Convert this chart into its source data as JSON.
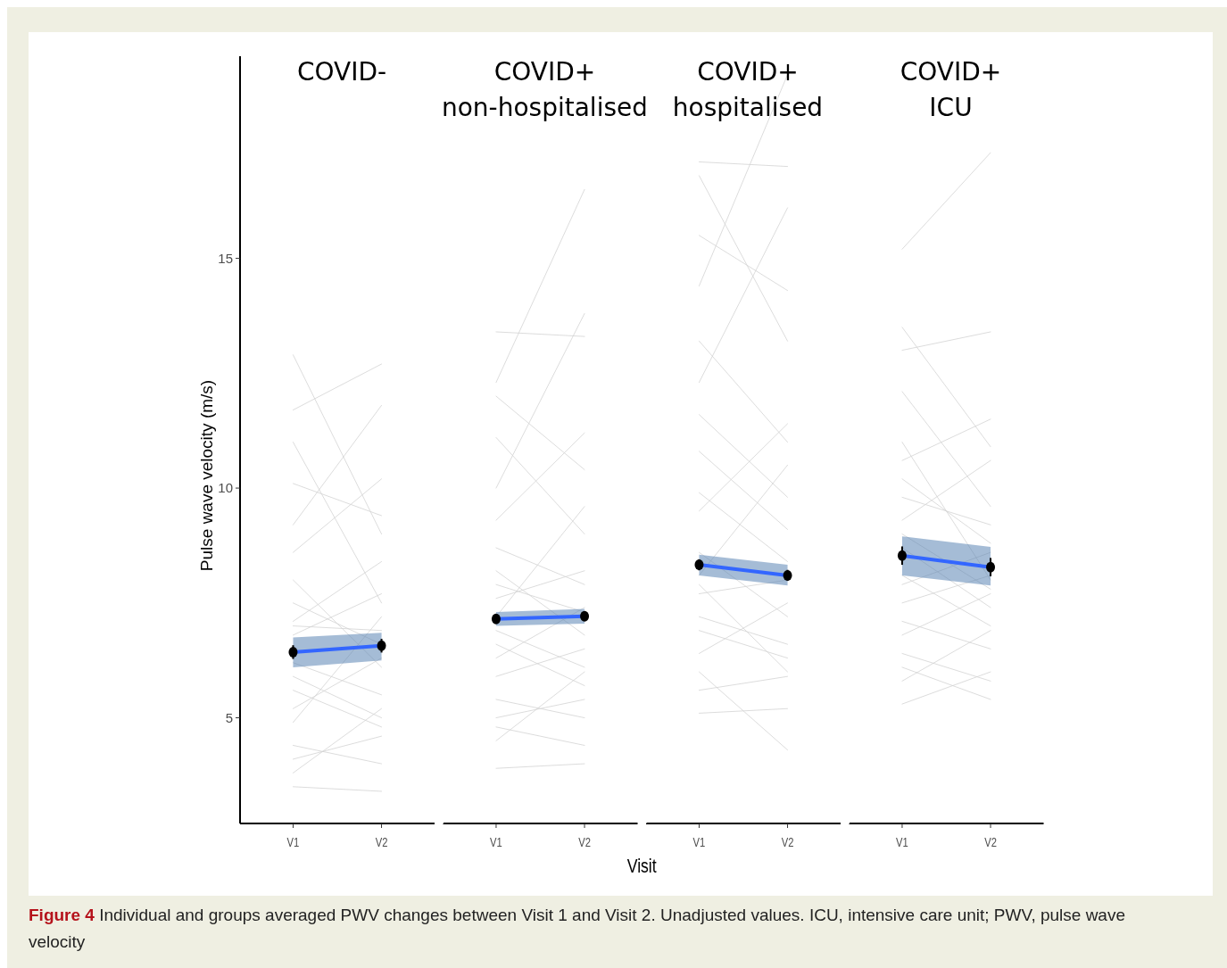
{
  "chart_data": [
    {
      "type": "line",
      "title": "COVID-",
      "ylabel": "Pulse wave velocity (m/s)",
      "categories": [
        "V1",
        "V2"
      ],
      "ylim": [
        2.7,
        19.4
      ],
      "yticks": [
        5,
        10,
        15
      ],
      "grid": false,
      "line_style": "solid",
      "annotations": [
        "Figure 4 Individual and groups averaged PWV changes between Visit 1 and Visit 2. Unadjusted values. ICU, intensive care unit; PWV, pulse wave velocity"
      ],
      "series": [
        {
          "color": "#d3d3d3",
          "values": [
            12.9,
            9.0
          ]
        },
        {
          "color": "#d3d3d3",
          "values": [
            11.7,
            12.7
          ]
        },
        {
          "color": "#d3d3d3",
          "values": [
            3.5,
            3.4
          ]
        },
        {
          "color": "#d3d3d3",
          "values": [
            3.8,
            5.2
          ]
        },
        {
          "color": "#d3d3d3",
          "values": [
            11.0,
            7.5
          ]
        },
        {
          "color": "#d3d3d3",
          "values": [
            9.2,
            11.8
          ]
        },
        {
          "color": "#d3d3d3",
          "values": [
            8.0,
            6.1
          ]
        },
        {
          "color": "#d3d3d3",
          "values": [
            7.1,
            8.4
          ]
        },
        {
          "color": "#d3d3d3",
          "values": [
            7.0,
            6.9
          ]
        },
        {
          "color": "#d3d3d3",
          "values": [
            5.9,
            5.0
          ]
        },
        {
          "color": "#d3d3d3",
          "values": [
            5.2,
            6.3
          ]
        },
        {
          "color": "#d3d3d3",
          "values": [
            4.4,
            4.0
          ]
        },
        {
          "color": "#d3d3d3",
          "values": [
            4.9,
            7.2
          ]
        },
        {
          "color": "#d3d3d3",
          "values": [
            6.2,
            5.5
          ]
        },
        {
          "color": "#d3d3d3",
          "values": [
            7.5,
            6.6
          ]
        },
        {
          "color": "#d3d3d3",
          "values": [
            8.6,
            10.2
          ]
        },
        {
          "color": "#d3d3d3",
          "values": [
            6.8,
            7.7
          ]
        },
        {
          "color": "#d3d3d3",
          "values": [
            5.6,
            4.8
          ]
        },
        {
          "color": "#d3d3d3",
          "values": [
            10.1,
            9.4
          ]
        },
        {
          "color": "#d3d3d3",
          "values": [
            4.1,
            4.6
          ]
        },
        {
          "color": "#3366ff",
          "values": [
            6.43,
            6.57
          ],
          "lower": [
            6.1,
            6.25
          ],
          "upper": [
            6.75,
            6.85
          ]
        },
        {
          "type": "scatter",
          "marker": "circle",
          "color": "#000000",
          "values": [
            6.43,
            6.57
          ],
          "errors": [
            0.15,
            0.15
          ]
        }
      ]
    },
    {
      "type": "line",
      "title": "COVID+\nnon-hospitalised",
      "xlabel": "Visit",
      "categories": [
        "V1",
        "V2"
      ],
      "ylim": [
        2.7,
        19.4
      ],
      "yticks": [
        5,
        10,
        15
      ],
      "tick_labels": "x",
      "grid": false,
      "line_style": "solid",
      "series": [
        {
          "color": "#d3d3d3",
          "values": [
            13.4,
            13.3
          ]
        },
        {
          "color": "#d3d3d3",
          "values": [
            12.3,
            16.5
          ]
        },
        {
          "color": "#d3d3d3",
          "values": [
            3.9,
            4.0
          ]
        },
        {
          "color": "#d3d3d3",
          "values": [
            4.5,
            6.0
          ]
        },
        {
          "color": "#d3d3d3",
          "values": [
            11.1,
            9.0
          ]
        },
        {
          "color": "#d3d3d3",
          "values": [
            10.0,
            13.8
          ]
        },
        {
          "color": "#d3d3d3",
          "values": [
            8.7,
            7.9
          ]
        },
        {
          "color": "#d3d3d3",
          "values": [
            7.6,
            8.2
          ]
        },
        {
          "color": "#d3d3d3",
          "values": [
            6.9,
            6.1
          ]
        },
        {
          "color": "#d3d3d3",
          "values": [
            6.3,
            7.4
          ]
        },
        {
          "color": "#d3d3d3",
          "values": [
            5.4,
            5.0
          ]
        },
        {
          "color": "#d3d3d3",
          "values": [
            4.8,
            4.4
          ]
        },
        {
          "color": "#d3d3d3",
          "values": [
            7.2,
            9.6
          ]
        },
        {
          "color": "#d3d3d3",
          "values": [
            8.2,
            6.8
          ]
        },
        {
          "color": "#d3d3d3",
          "values": [
            9.3,
            11.2
          ]
        },
        {
          "color": "#d3d3d3",
          "values": [
            5.9,
            6.5
          ]
        },
        {
          "color": "#d3d3d3",
          "values": [
            6.6,
            5.7
          ]
        },
        {
          "color": "#d3d3d3",
          "values": [
            7.9,
            7.3
          ]
        },
        {
          "color": "#d3d3d3",
          "values": [
            12.0,
            10.4
          ]
        },
        {
          "color": "#d3d3d3",
          "values": [
            5.0,
            5.4
          ]
        },
        {
          "color": "#3366ff",
          "values": [
            7.15,
            7.21
          ],
          "lower": [
            7.0,
            7.05
          ],
          "upper": [
            7.3,
            7.37
          ]
        },
        {
          "type": "scatter",
          "marker": "circle",
          "color": "#000000",
          "values": [
            7.15,
            7.21
          ],
          "errors": [
            0.1,
            0.1
          ]
        }
      ]
    },
    {
      "type": "line",
      "title": "COVID+\nhospitalised",
      "categories": [
        "V1",
        "V2"
      ],
      "ylim": [
        2.7,
        19.4
      ],
      "yticks": [
        5,
        10,
        15
      ],
      "tick_labels": "x",
      "grid": false,
      "line_style": "solid",
      "series": [
        {
          "color": "#d3d3d3",
          "values": [
            17.1,
            17.0
          ]
        },
        {
          "color": "#d3d3d3",
          "values": [
            16.8,
            13.2
          ]
        },
        {
          "color": "#d3d3d3",
          "values": [
            5.1,
            5.2
          ]
        },
        {
          "color": "#d3d3d3",
          "values": [
            6.0,
            4.3
          ]
        },
        {
          "color": "#d3d3d3",
          "values": [
            14.4,
            19.0
          ]
        },
        {
          "color": "#d3d3d3",
          "values": [
            12.3,
            16.1
          ]
        },
        {
          "color": "#d3d3d3",
          "values": [
            10.8,
            9.1
          ]
        },
        {
          "color": "#d3d3d3",
          "values": [
            9.5,
            11.4
          ]
        },
        {
          "color": "#d3d3d3",
          "values": [
            8.6,
            7.2
          ]
        },
        {
          "color": "#d3d3d3",
          "values": [
            7.7,
            8.0
          ]
        },
        {
          "color": "#d3d3d3",
          "values": [
            6.9,
            6.3
          ]
        },
        {
          "color": "#d3d3d3",
          "values": [
            5.6,
            5.9
          ]
        },
        {
          "color": "#d3d3d3",
          "values": [
            8.1,
            10.5
          ]
        },
        {
          "color": "#d3d3d3",
          "values": [
            9.9,
            8.4
          ]
        },
        {
          "color": "#d3d3d3",
          "values": [
            11.6,
            9.8
          ]
        },
        {
          "color": "#d3d3d3",
          "values": [
            7.2,
            6.6
          ]
        },
        {
          "color": "#d3d3d3",
          "values": [
            13.2,
            11.0
          ]
        },
        {
          "color": "#d3d3d3",
          "values": [
            6.4,
            7.5
          ]
        },
        {
          "color": "#d3d3d3",
          "values": [
            15.5,
            14.3
          ]
        },
        {
          "color": "#d3d3d3",
          "values": [
            7.9,
            6.0
          ]
        },
        {
          "color": "#3366ff",
          "values": [
            8.33,
            8.1
          ],
          "lower": [
            8.1,
            7.88
          ],
          "upper": [
            8.55,
            8.33
          ]
        },
        {
          "type": "scatter",
          "marker": "circle",
          "color": "#000000",
          "values": [
            8.33,
            8.1
          ],
          "errors": [
            0.12,
            0.12
          ]
        }
      ]
    },
    {
      "type": "line",
      "title": "COVID+\nICU",
      "categories": [
        "V1",
        "V2"
      ],
      "ylim": [
        2.7,
        19.4
      ],
      "yticks": [
        5,
        10,
        15
      ],
      "tick_labels": "x",
      "grid": false,
      "line_style": "solid",
      "series": [
        {
          "color": "#d3d3d3",
          "values": [
            15.2,
            17.3
          ]
        },
        {
          "color": "#d3d3d3",
          "values": [
            13.5,
            10.9
          ]
        },
        {
          "color": "#d3d3d3",
          "values": [
            5.3,
            6.0
          ]
        },
        {
          "color": "#d3d3d3",
          "values": [
            6.1,
            5.4
          ]
        },
        {
          "color": "#d3d3d3",
          "values": [
            13.0,
            13.4
          ]
        },
        {
          "color": "#d3d3d3",
          "values": [
            11.0,
            8.0
          ]
        },
        {
          "color": "#d3d3d3",
          "values": [
            9.8,
            9.2
          ]
        },
        {
          "color": "#d3d3d3",
          "values": [
            8.7,
            7.4
          ]
        },
        {
          "color": "#d3d3d3",
          "values": [
            7.9,
            8.6
          ]
        },
        {
          "color": "#d3d3d3",
          "values": [
            7.1,
            6.5
          ]
        },
        {
          "color": "#d3d3d3",
          "values": [
            6.4,
            5.8
          ]
        },
        {
          "color": "#d3d3d3",
          "values": [
            5.8,
            6.9
          ]
        },
        {
          "color": "#d3d3d3",
          "values": [
            9.3,
            10.6
          ]
        },
        {
          "color": "#d3d3d3",
          "values": [
            10.2,
            8.8
          ]
        },
        {
          "color": "#d3d3d3",
          "values": [
            8.1,
            7.0
          ]
        },
        {
          "color": "#d3d3d3",
          "values": [
            12.1,
            9.6
          ]
        },
        {
          "color": "#d3d3d3",
          "values": [
            7.5,
            8.1
          ]
        },
        {
          "color": "#d3d3d3",
          "values": [
            6.8,
            7.7
          ]
        },
        {
          "color": "#d3d3d3",
          "values": [
            10.6,
            11.5
          ]
        },
        {
          "color": "#d3d3d3",
          "values": [
            9.0,
            7.8
          ]
        },
        {
          "color": "#3366ff",
          "values": [
            8.53,
            8.28
          ],
          "lower": [
            8.1,
            7.88
          ],
          "upper": [
            8.95,
            8.72
          ]
        },
        {
          "type": "scatter",
          "marker": "circle",
          "color": "#000000",
          "values": [
            8.53,
            8.28
          ],
          "errors": [
            0.2,
            0.2
          ]
        }
      ]
    }
  ]
}
